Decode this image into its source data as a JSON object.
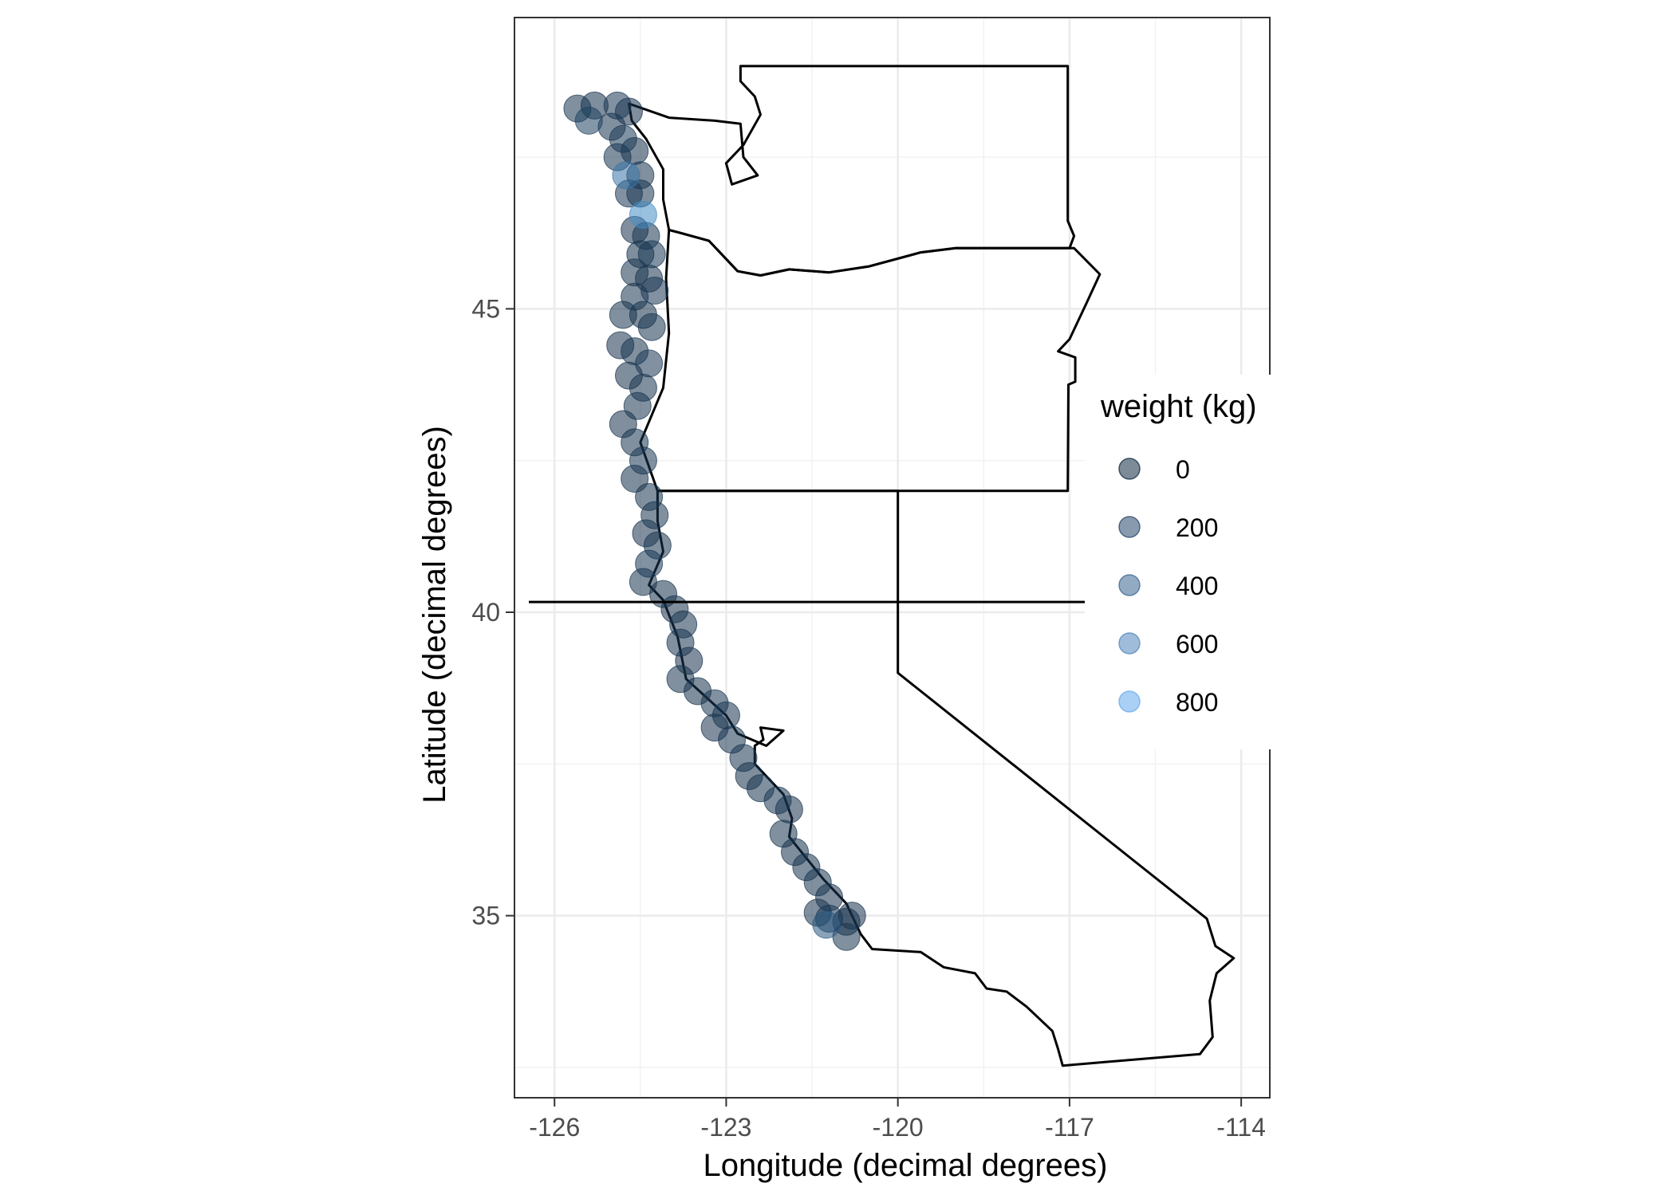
{
  "chart_data": {
    "type": "scatter",
    "title": "",
    "xlabel": "Longitude (decimal degrees)",
    "ylabel": "Latitude (decimal degrees)",
    "xlim": [
      -126.7,
      -113.5
    ],
    "ylim": [
      32.0,
      49.8
    ],
    "x_ticks": [
      -126,
      -123,
      -120,
      -117,
      -114
    ],
    "x_tick_labels": [
      "-126",
      "-123",
      "-120",
      "-117",
      "-114"
    ],
    "y_ticks": [
      35,
      40,
      45
    ],
    "y_tick_labels": [
      "35",
      "40",
      "45"
    ],
    "grid": true,
    "legend": {
      "title": "weight (kg)",
      "placement": "right",
      "entries": [
        {
          "label": "0",
          "color": "#132B43"
        },
        {
          "label": "200",
          "color": "#27476A"
        },
        {
          "label": "400",
          "color": "#3B6592"
        },
        {
          "label": "600",
          "color": "#5187BE"
        },
        {
          "label": "800",
          "color": "#66A9EC"
        }
      ]
    },
    "reference_lines": [
      {
        "type": "hline",
        "y": 40.17
      }
    ],
    "series": [
      {
        "kind": "points",
        "color_low": "#132B43",
        "color_high": "#56B1F7",
        "points": [
          {
            "x": -125.6,
            "y": 48.3,
            "w": 60
          },
          {
            "x": -125.3,
            "y": 48.35,
            "w": 40
          },
          {
            "x": -124.9,
            "y": 48.35,
            "w": 80
          },
          {
            "x": -124.7,
            "y": 48.25,
            "w": 50
          },
          {
            "x": -125.4,
            "y": 48.1,
            "w": 150
          },
          {
            "x": -125.0,
            "y": 48.0,
            "w": 60
          },
          {
            "x": -124.8,
            "y": 47.8,
            "w": 90
          },
          {
            "x": -124.9,
            "y": 47.5,
            "w": 70
          },
          {
            "x": -124.6,
            "y": 47.6,
            "w": 40
          },
          {
            "x": -124.75,
            "y": 47.2,
            "w": 500
          },
          {
            "x": -124.5,
            "y": 47.2,
            "w": 60
          },
          {
            "x": -124.7,
            "y": 46.9,
            "w": 80
          },
          {
            "x": -124.45,
            "y": 46.55,
            "w": 650
          },
          {
            "x": -124.5,
            "y": 46.9,
            "w": 60
          },
          {
            "x": -124.6,
            "y": 46.3,
            "w": 50
          },
          {
            "x": -124.4,
            "y": 46.2,
            "w": 70
          },
          {
            "x": -124.5,
            "y": 45.9,
            "w": 40
          },
          {
            "x": -124.3,
            "y": 45.9,
            "w": 90
          },
          {
            "x": -124.6,
            "y": 45.6,
            "w": 60
          },
          {
            "x": -124.35,
            "y": 45.5,
            "w": 50
          },
          {
            "x": -124.25,
            "y": 45.3,
            "w": 80
          },
          {
            "x": -124.6,
            "y": 45.2,
            "w": 60
          },
          {
            "x": -124.8,
            "y": 44.9,
            "w": 60
          },
          {
            "x": -124.45,
            "y": 44.9,
            "w": 40
          },
          {
            "x": -124.3,
            "y": 44.7,
            "w": 70
          },
          {
            "x": -124.85,
            "y": 44.4,
            "w": 50
          },
          {
            "x": -124.6,
            "y": 44.3,
            "w": 60
          },
          {
            "x": -124.35,
            "y": 44.1,
            "w": 80
          },
          {
            "x": -124.7,
            "y": 43.9,
            "w": 40
          },
          {
            "x": -124.45,
            "y": 43.7,
            "w": 60
          },
          {
            "x": -124.55,
            "y": 43.4,
            "w": 70
          },
          {
            "x": -124.8,
            "y": 43.1,
            "w": 50
          },
          {
            "x": -124.6,
            "y": 42.8,
            "w": 60
          },
          {
            "x": -124.45,
            "y": 42.5,
            "w": 80
          },
          {
            "x": -124.6,
            "y": 42.2,
            "w": 40
          },
          {
            "x": -124.35,
            "y": 41.9,
            "w": 60
          },
          {
            "x": -124.25,
            "y": 41.6,
            "w": 70
          },
          {
            "x": -124.4,
            "y": 41.3,
            "w": 50
          },
          {
            "x": -124.2,
            "y": 41.1,
            "w": 60
          },
          {
            "x": -124.35,
            "y": 40.8,
            "w": 90
          },
          {
            "x": -124.45,
            "y": 40.5,
            "w": 60
          },
          {
            "x": -124.1,
            "y": 40.3,
            "w": 40
          },
          {
            "x": -123.9,
            "y": 40.05,
            "w": 50
          },
          {
            "x": -123.75,
            "y": 39.8,
            "w": 60
          },
          {
            "x": -123.8,
            "y": 39.5,
            "w": 70
          },
          {
            "x": -123.65,
            "y": 39.2,
            "w": 50
          },
          {
            "x": -123.8,
            "y": 38.9,
            "w": 60
          },
          {
            "x": -123.5,
            "y": 38.7,
            "w": 40
          },
          {
            "x": -123.2,
            "y": 38.5,
            "w": 80
          },
          {
            "x": -123.0,
            "y": 38.3,
            "w": 60
          },
          {
            "x": -123.2,
            "y": 38.1,
            "w": 50
          },
          {
            "x": -122.9,
            "y": 37.9,
            "w": 70
          },
          {
            "x": -122.7,
            "y": 37.6,
            "w": 60
          },
          {
            "x": -122.6,
            "y": 37.3,
            "w": 40
          },
          {
            "x": -122.4,
            "y": 37.1,
            "w": 60
          },
          {
            "x": -122.1,
            "y": 36.9,
            "w": 80
          },
          {
            "x": -121.9,
            "y": 36.75,
            "w": 50
          },
          {
            "x": -122.0,
            "y": 36.35,
            "w": 60
          },
          {
            "x": -121.8,
            "y": 36.05,
            "w": 40
          },
          {
            "x": -121.6,
            "y": 35.8,
            "w": 70
          },
          {
            "x": -121.4,
            "y": 35.55,
            "w": 60
          },
          {
            "x": -121.2,
            "y": 35.3,
            "w": 50
          },
          {
            "x": -121.4,
            "y": 35.05,
            "w": 60
          },
          {
            "x": -121.2,
            "y": 34.95,
            "w": 80
          },
          {
            "x": -120.9,
            "y": 34.9,
            "w": 40
          },
          {
            "x": -121.25,
            "y": 34.85,
            "w": 300
          },
          {
            "x": -120.9,
            "y": 34.65,
            "w": 60
          },
          {
            "x": -120.8,
            "y": 35.0,
            "w": 50
          }
        ]
      }
    ],
    "outlines": [
      {
        "name": "WA",
        "points": [
          [
            -124.7,
            48.38
          ],
          [
            -124.0,
            48.15
          ],
          [
            -123.2,
            48.1
          ],
          [
            -122.75,
            48.05
          ],
          [
            -122.7,
            47.5
          ],
          [
            -122.45,
            47.2
          ],
          [
            -122.9,
            47.05
          ],
          [
            -123.0,
            47.4
          ],
          [
            -122.7,
            47.7
          ],
          [
            -122.4,
            48.2
          ],
          [
            -122.5,
            48.5
          ],
          [
            -122.75,
            48.75
          ],
          [
            -122.75,
            49.0
          ],
          [
            -117.03,
            49.0
          ],
          [
            -117.03,
            46.45
          ],
          [
            -116.92,
            46.2
          ],
          [
            -117.0,
            46.0
          ],
          [
            -118.99,
            46.0
          ],
          [
            -119.6,
            45.93
          ],
          [
            -120.5,
            45.7
          ],
          [
            -121.2,
            45.6
          ],
          [
            -121.9,
            45.65
          ],
          [
            -122.4,
            45.55
          ],
          [
            -122.8,
            45.62
          ],
          [
            -123.3,
            46.12
          ],
          [
            -123.8,
            46.25
          ],
          [
            -124.0,
            46.3
          ],
          [
            -124.1,
            46.8
          ],
          [
            -124.1,
            47.3
          ],
          [
            -124.4,
            47.8
          ],
          [
            -124.65,
            48.1
          ],
          [
            -124.7,
            48.38
          ]
        ]
      },
      {
        "name": "OR",
        "points": [
          [
            -124.0,
            46.3
          ],
          [
            -123.8,
            46.25
          ],
          [
            -123.3,
            46.12
          ],
          [
            -122.8,
            45.62
          ],
          [
            -122.4,
            45.55
          ],
          [
            -121.9,
            45.65
          ],
          [
            -121.2,
            45.6
          ],
          [
            -120.5,
            45.7
          ],
          [
            -119.6,
            45.93
          ],
          [
            -118.99,
            46.0
          ],
          [
            -116.92,
            46.0
          ],
          [
            -116.47,
            45.57
          ],
          [
            -116.7,
            45.1
          ],
          [
            -117.0,
            44.5
          ],
          [
            -117.2,
            44.3
          ],
          [
            -116.9,
            44.2
          ],
          [
            -116.9,
            43.8
          ],
          [
            -117.02,
            43.75
          ],
          [
            -117.03,
            42.0
          ],
          [
            -124.2,
            42.0
          ],
          [
            -124.5,
            42.8
          ],
          [
            -124.1,
            43.7
          ],
          [
            -124.0,
            44.6
          ],
          [
            -124.05,
            45.5
          ],
          [
            -124.0,
            46.3
          ]
        ]
      },
      {
        "name": "CA",
        "points": [
          [
            -124.2,
            42.0
          ],
          [
            -120.0,
            42.0
          ],
          [
            -120.0,
            39.0
          ],
          [
            -116.0,
            36.0
          ],
          [
            -114.6,
            34.95
          ],
          [
            -114.45,
            34.5
          ],
          [
            -114.13,
            34.3
          ],
          [
            -114.43,
            34.05
          ],
          [
            -114.55,
            33.6
          ],
          [
            -114.5,
            33.0
          ],
          [
            -114.72,
            32.72
          ],
          [
            -117.12,
            32.53
          ],
          [
            -117.2,
            32.8
          ],
          [
            -117.3,
            33.1
          ],
          [
            -117.75,
            33.5
          ],
          [
            -118.1,
            33.75
          ],
          [
            -118.45,
            33.8
          ],
          [
            -118.65,
            34.05
          ],
          [
            -119.2,
            34.15
          ],
          [
            -119.6,
            34.4
          ],
          [
            -120.45,
            34.45
          ],
          [
            -120.65,
            34.7
          ],
          [
            -120.9,
            35.2
          ],
          [
            -121.3,
            35.6
          ],
          [
            -121.9,
            36.3
          ],
          [
            -121.85,
            36.6
          ],
          [
            -122.0,
            37.0
          ],
          [
            -122.5,
            37.5
          ],
          [
            -122.5,
            37.8
          ],
          [
            -122.35,
            37.9
          ],
          [
            -122.4,
            38.1
          ],
          [
            -122.0,
            38.05
          ],
          [
            -122.3,
            37.8
          ],
          [
            -122.8,
            38.0
          ],
          [
            -123.0,
            38.3
          ],
          [
            -123.7,
            38.9
          ],
          [
            -123.85,
            39.6
          ],
          [
            -124.1,
            40.2
          ],
          [
            -124.35,
            40.45
          ],
          [
            -124.1,
            41.0
          ],
          [
            -124.2,
            41.5
          ],
          [
            -124.2,
            42.0
          ]
        ]
      }
    ]
  }
}
